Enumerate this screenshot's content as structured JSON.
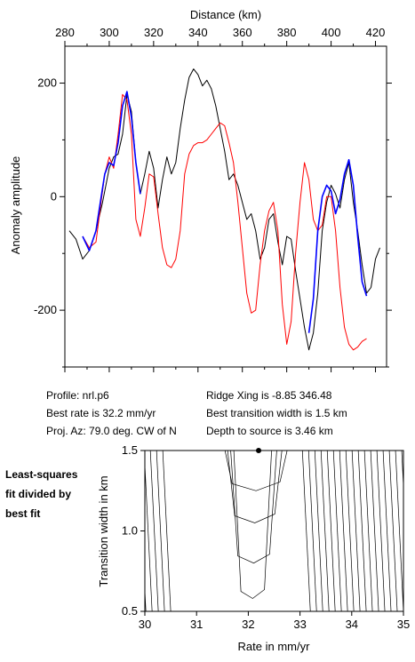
{
  "chart_data": [
    {
      "type": "line",
      "title": "",
      "xlabel": "Distance (km)",
      "ylabel": "Anomaly amplitude",
      "xlim": [
        280,
        425
      ],
      "ylim": [
        -300,
        265
      ],
      "x_ticks": [
        280,
        300,
        320,
        340,
        360,
        380,
        400,
        420
      ],
      "y_ticks": [
        200,
        0,
        -200
      ],
      "y_tick_labels": [
        "200",
        "0",
        "-200"
      ],
      "grid": false,
      "series": [
        {
          "color": "#000000",
          "x": [
            282,
            285,
            288,
            291,
            294,
            297,
            300,
            302,
            304,
            306,
            308,
            310,
            312,
            314,
            316,
            318,
            320,
            322,
            324,
            326,
            328,
            330,
            332,
            334,
            336,
            338,
            340,
            342,
            344,
            346,
            348,
            350,
            352,
            354,
            356,
            358,
            360,
            362,
            364,
            366,
            368,
            370,
            372,
            374,
            376,
            378,
            380,
            382,
            384,
            386,
            388,
            390,
            392,
            394,
            396,
            398,
            400,
            402,
            404,
            406,
            408,
            410,
            412,
            414,
            416,
            418,
            420,
            422
          ],
          "y": [
            -60,
            -75,
            -110,
            -95,
            -60,
            -10,
            50,
            70,
            75,
            110,
            180,
            150,
            60,
            5,
            40,
            80,
            50,
            -20,
            30,
            70,
            40,
            60,
            120,
            170,
            210,
            225,
            215,
            195,
            205,
            190,
            160,
            120,
            80,
            30,
            40,
            20,
            -10,
            -40,
            -30,
            -60,
            -110,
            -90,
            -40,
            -30,
            -80,
            -120,
            -70,
            -75,
            -130,
            -180,
            -230,
            -270,
            -240,
            -170,
            -60,
            -10,
            20,
            5,
            -20,
            30,
            60,
            -10,
            -60,
            -120,
            -170,
            -160,
            -110,
            -90
          ]
        },
        {
          "color": "#ff0000",
          "x": [
            288,
            291,
            294,
            296,
            298,
            300,
            302,
            304,
            306,
            308,
            310,
            312,
            314,
            316,
            318,
            320,
            322,
            324,
            326,
            328,
            330,
            332,
            334,
            336,
            338,
            340,
            342,
            344,
            346,
            348,
            350,
            352,
            354,
            356,
            358,
            360,
            362,
            364,
            366,
            368,
            370,
            372,
            374,
            376,
            378,
            380,
            382,
            384,
            386,
            388,
            390,
            392,
            394,
            396,
            398,
            400,
            402,
            404,
            406,
            408,
            410,
            412,
            414,
            416
          ],
          "y": [
            -70,
            -90,
            -80,
            -20,
            40,
            70,
            50,
            110,
            180,
            170,
            110,
            -40,
            -70,
            -20,
            40,
            35,
            -30,
            -90,
            -120,
            -125,
            -110,
            -60,
            40,
            75,
            90,
            95,
            95,
            100,
            110,
            120,
            130,
            125,
            95,
            60,
            -10,
            -90,
            -170,
            -205,
            -200,
            -120,
            -60,
            -25,
            -10,
            -60,
            -190,
            -260,
            -220,
            -100,
            -10,
            60,
            30,
            -40,
            -60,
            -50,
            0,
            0,
            -60,
            -160,
            -230,
            -260,
            -270,
            -265,
            -255,
            -250
          ]
        },
        {
          "color": "#0000ff",
          "x": [
            288,
            291,
            294,
            296,
            298,
            300,
            302,
            304,
            306,
            308,
            310,
            312,
            314
          ],
          "y": [
            -70,
            -95,
            -60,
            -10,
            40,
            60,
            55,
            95,
            160,
            185,
            140,
            60,
            5
          ]
        },
        {
          "color": "#0000ff",
          "x": [
            390,
            392,
            394,
            396,
            398,
            400,
            402,
            404,
            406,
            408,
            410,
            412,
            414,
            416
          ],
          "y": [
            -240,
            -180,
            -60,
            0,
            20,
            10,
            -30,
            -5,
            40,
            65,
            20,
            -70,
            -150,
            -175
          ]
        }
      ]
    },
    {
      "type": "contour",
      "xlabel": "Rate in mm/yr",
      "ylabel": "Transition width in km",
      "xlim": [
        30,
        35
      ],
      "ylim": [
        0.5,
        1.5
      ],
      "x_ticks": [
        30,
        31,
        32,
        33,
        34,
        35
      ],
      "y_ticks": [
        0.5,
        1.0,
        1.5
      ],
      "y_tick_labels": [
        "0.5",
        "1.0",
        "1.5"
      ],
      "best_fit_point": {
        "x": 32.2,
        "y": 1.5
      },
      "contour_slope_km_per_rate": 6.5,
      "contour_left_bottom_rates": [
        30.5,
        30.38,
        30.26,
        30.14,
        30.02,
        29.9,
        29.78,
        29.66,
        29.54,
        29.42,
        29.3,
        29.18,
        29.06,
        28.94,
        28.82,
        28.7
      ],
      "contour_right_bottom_rates": [
        33.2,
        33.32,
        33.44,
        33.56,
        33.68,
        33.8,
        33.92,
        34.04,
        34.16,
        34.28,
        34.4,
        34.52,
        34.64,
        34.76,
        34.88,
        35.0,
        35.12,
        35.24,
        35.36,
        35.48
      ],
      "u_contours": [
        {
          "left_x": 31.72,
          "right_x": 32.45,
          "bottom_y": 0.58
        },
        {
          "left_x": 31.66,
          "right_x": 32.55,
          "bottom_y": 0.8
        },
        {
          "left_x": 31.6,
          "right_x": 32.65,
          "bottom_y": 1.05
        },
        {
          "left_x": 31.55,
          "right_x": 32.75,
          "bottom_y": 1.25
        }
      ]
    }
  ],
  "info": {
    "profile": "Profile: nrl.p6",
    "rate": "Best rate is 32.2 mm/yr",
    "proj": "Proj. Az: 79.0 deg. CW of N",
    "ridge": "Ridge Xing is -8.85 346.48",
    "width": "Best transition width is 1.5 km",
    "depth": "Depth to source is   3.46 km"
  },
  "side_note": [
    "Least-squares",
    "fit divided by",
    "best fit"
  ]
}
